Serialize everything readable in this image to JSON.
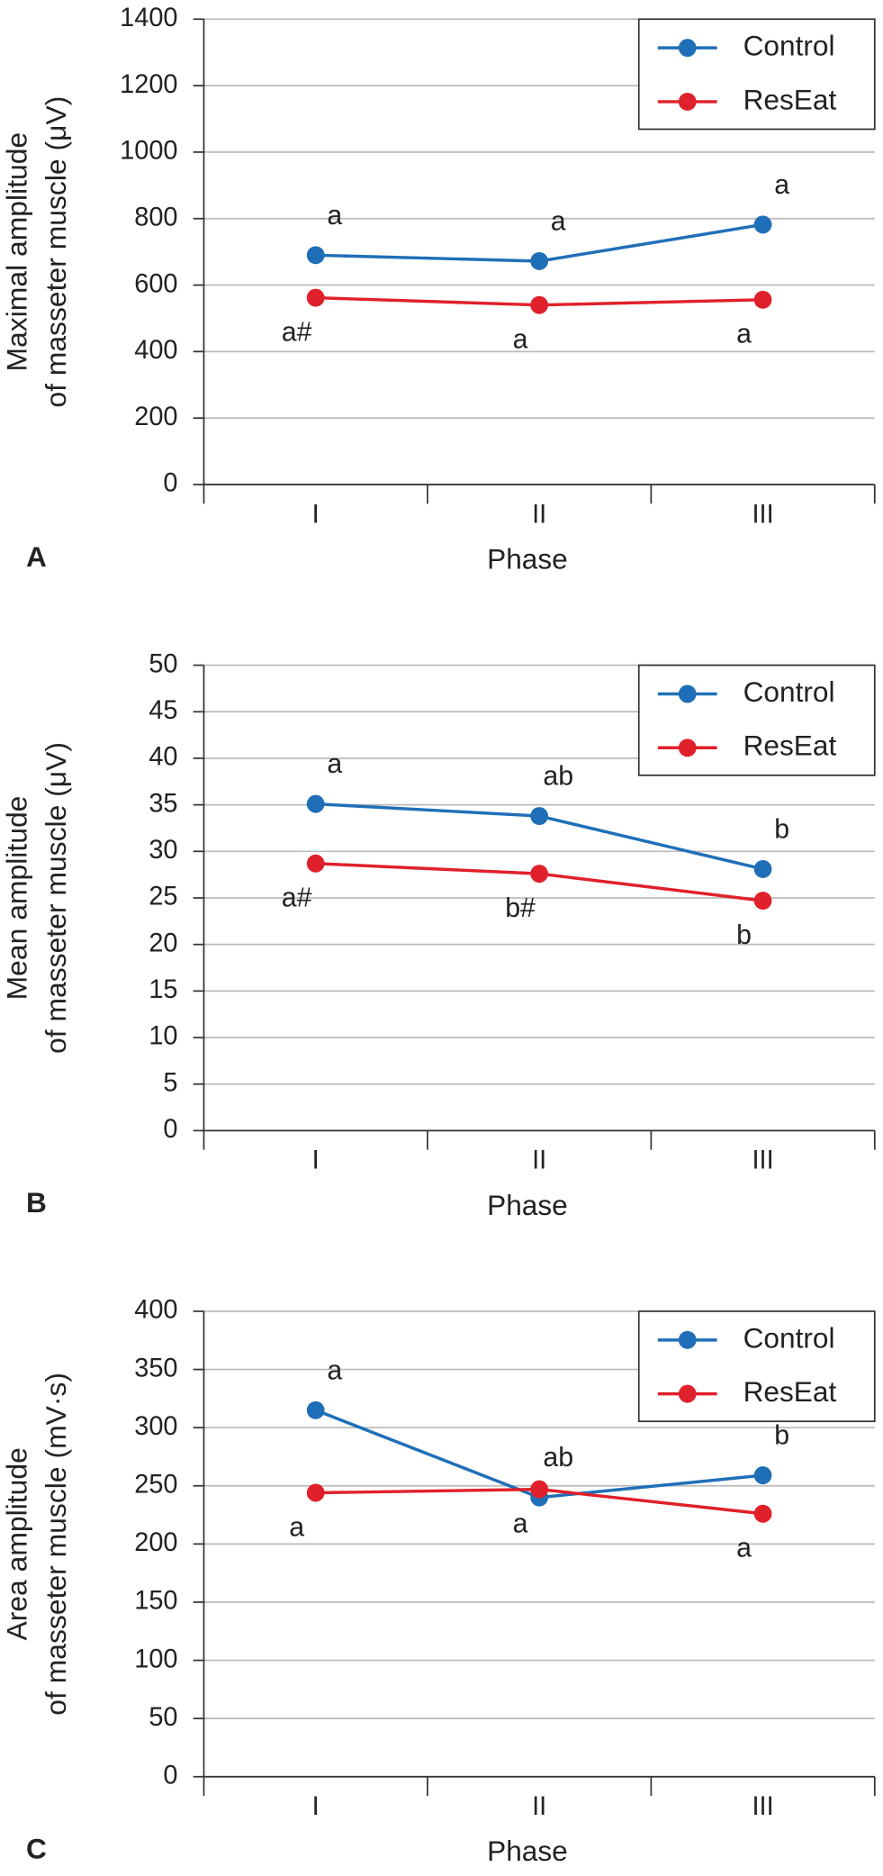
{
  "chart_data": [
    {
      "type": "line",
      "panel": "A",
      "ylabel": [
        "Maximal amplitude",
        "of masseter muscle (μV)"
      ],
      "xlabel": "Phase",
      "categories": [
        "I",
        "II",
        "III"
      ],
      "ylim": [
        0,
        1400
      ],
      "yticks": [
        0,
        200,
        400,
        600,
        800,
        1000,
        1200,
        1400
      ],
      "grid": true,
      "legend": "upper right",
      "series": [
        {
          "name": "Control",
          "color": "#1f6fb8",
          "values": [
            690,
            672,
            782
          ],
          "annotations": [
            "a",
            "a",
            "a"
          ]
        },
        {
          "name": "ResEat",
          "color": "#e0202a",
          "values": [
            562,
            540,
            556
          ],
          "annotations": [
            "a#",
            "a",
            "a"
          ]
        }
      ]
    },
    {
      "type": "line",
      "panel": "B",
      "ylabel": [
        "Mean amplitude",
        "of masseter muscle (μV)"
      ],
      "xlabel": "Phase",
      "categories": [
        "I",
        "II",
        "III"
      ],
      "ylim": [
        0,
        50
      ],
      "yticks": [
        0,
        5,
        10,
        15,
        20,
        25,
        30,
        35,
        40,
        45,
        50
      ],
      "grid": true,
      "legend": "upper right",
      "series": [
        {
          "name": "Control",
          "color": "#1f6fb8",
          "values": [
            35.1,
            33.8,
            28.1
          ],
          "annotations": [
            "a",
            "ab",
            "b"
          ]
        },
        {
          "name": "ResEat",
          "color": "#e0202a",
          "values": [
            28.7,
            27.6,
            24.7
          ],
          "annotations": [
            "a#",
            "b#",
            "b"
          ]
        }
      ]
    },
    {
      "type": "line",
      "panel": "C",
      "ylabel": [
        "Area amplitude",
        "of masseter muscle (mV·s)"
      ],
      "xlabel": "Phase",
      "categories": [
        "I",
        "II",
        "III"
      ],
      "ylim": [
        0,
        400
      ],
      "yticks": [
        0,
        50,
        100,
        150,
        200,
        250,
        300,
        350,
        400
      ],
      "grid": true,
      "legend": "upper right",
      "series": [
        {
          "name": "Control",
          "color": "#1f6fb8",
          "values": [
            315,
            240,
            259
          ],
          "annotations": [
            "a",
            "ab",
            "b"
          ]
        },
        {
          "name": "ResEat",
          "color": "#e0202a",
          "values": [
            244,
            247,
            226
          ],
          "annotations": [
            "a",
            "a",
            "a"
          ]
        }
      ]
    }
  ]
}
